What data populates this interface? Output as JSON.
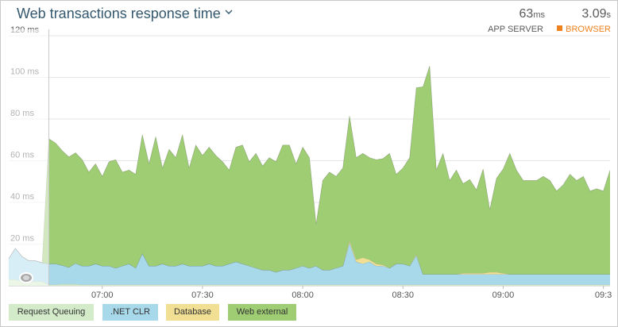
{
  "header": {
    "title": "Web transactions response time",
    "app_server": {
      "value": "63",
      "unit": "ms",
      "label": "APP SERVER"
    },
    "browser": {
      "value": "3.09",
      "unit": "s",
      "label": "BROWSER",
      "color": "#f0821e"
    }
  },
  "legend": [
    {
      "label": "Request Queuing",
      "color": "#d3ebc9"
    },
    {
      "label": ".NET CLR",
      "color": "#a8d9ea"
    },
    {
      "label": "Database",
      "color": "#f1df94"
    },
    {
      "label": "Web external",
      "color": "#9ecd73"
    }
  ],
  "chart_data": {
    "type": "area",
    "stacked": true,
    "ylim": [
      0,
      120
    ],
    "y_ticks": [
      20,
      40,
      60,
      80,
      100,
      120
    ],
    "y_tick_labels": [
      "20 ms",
      "40 ms",
      "60 ms",
      "80 ms",
      "100 ms",
      "120 ms"
    ],
    "x_tick_labels": [
      "07:00",
      "07:30",
      "08:00",
      "08:30",
      "09:00",
      "09:3"
    ],
    "x_ticks": [
      0,
      30,
      60,
      90,
      120,
      150
    ],
    "x_domain": [
      -28,
      152
    ],
    "grid": true,
    "highlight_until": -16,
    "x": [
      -28,
      -26,
      -24,
      -22,
      -20,
      -18,
      -16,
      -14,
      -12,
      -10,
      -8,
      -6,
      -4,
      -2,
      0,
      2,
      4,
      6,
      8,
      10,
      12,
      14,
      16,
      18,
      20,
      22,
      24,
      26,
      28,
      30,
      32,
      34,
      36,
      38,
      40,
      42,
      44,
      46,
      48,
      50,
      52,
      54,
      56,
      58,
      60,
      62,
      64,
      66,
      68,
      70,
      72,
      74,
      76,
      78,
      80,
      82,
      84,
      86,
      88,
      90,
      92,
      94,
      96,
      98,
      100,
      102,
      104,
      106,
      108,
      110,
      112,
      114,
      116,
      118,
      120,
      122,
      124,
      126,
      128,
      130,
      132,
      134,
      136,
      138,
      140,
      142,
      144,
      146,
      148,
      150,
      152
    ],
    "series": [
      {
        "name": "Request Queuing",
        "color": "#d3ebc9",
        "values": [
          3,
          3,
          2,
          2,
          2,
          2,
          0.5,
          0.5,
          0.8,
          0.8,
          0.8,
          0.5,
          0.5,
          0.5,
          0.5,
          0.5,
          0.5,
          0.5,
          0.5,
          0.5,
          0.5,
          0.5,
          0.5,
          0.5,
          0.5,
          0.5,
          0.5,
          0.5,
          0.5,
          0.5,
          0.5,
          0.5,
          0.5,
          0.5,
          0.5,
          0.5,
          0.5,
          0.5,
          0.5,
          0.5,
          0.5,
          0.5,
          0.5,
          0.5,
          0.5,
          0.5,
          0.5,
          0.5,
          0.5,
          0.5,
          0.5,
          0.5,
          0.5,
          0.5,
          0.5,
          0.5,
          0.5,
          0.5,
          0.5,
          0.5,
          0.5,
          0.5,
          0.5,
          0.5,
          0.5,
          0.5,
          0.5,
          0.5,
          0.5,
          0.5,
          0.5,
          0.5,
          0.5,
          0.5,
          0.5,
          0.5,
          0.5,
          0.5,
          0.5,
          0.5,
          0.5,
          0.5,
          0.5,
          0.5,
          0.5,
          0.5,
          0.5,
          0.5,
          0.5,
          0.5,
          0.5
        ]
      },
      {
        "name": ".NET CLR",
        "color": "#a8d9ea",
        "values": [
          10,
          15,
          12,
          10,
          10,
          9,
          10,
          10,
          9,
          8,
          10,
          9,
          9,
          10,
          9,
          9,
          8,
          9,
          10,
          8,
          15,
          9,
          9,
          10,
          9,
          9,
          10,
          9,
          9,
          9,
          10,
          9,
          9,
          10,
          11,
          10,
          9,
          8,
          7,
          7,
          6,
          7,
          7,
          8,
          9,
          8,
          9,
          7,
          7,
          8,
          9,
          20,
          11,
          10,
          11,
          9,
          9,
          8,
          10,
          10,
          9,
          14,
          5,
          5,
          5,
          5,
          5,
          5,
          5,
          5,
          5,
          5,
          5,
          5,
          5,
          5,
          5,
          5,
          5,
          5,
          5,
          5,
          5,
          5,
          5,
          5,
          5,
          5,
          5,
          5,
          5
        ]
      },
      {
        "name": "Database",
        "color": "#f1df94",
        "values": [
          0,
          0,
          0,
          0,
          0,
          0,
          0,
          0,
          0,
          0,
          0,
          0,
          0,
          0,
          0,
          0,
          0,
          0,
          0,
          0,
          0,
          0,
          0,
          0,
          0,
          0,
          0,
          0,
          0,
          0,
          0,
          0,
          0,
          0,
          0,
          0,
          0,
          0,
          0,
          0,
          0,
          0,
          0,
          0,
          0,
          0,
          0,
          0,
          0,
          0,
          0,
          1,
          1,
          3,
          1,
          1,
          0.5,
          0,
          0,
          0,
          0,
          0.5,
          0,
          0,
          0,
          0,
          0,
          0,
          0.5,
          0.5,
          0.5,
          0.5,
          1,
          1,
          0.5,
          0,
          0,
          0,
          0,
          0,
          0,
          0,
          0,
          0,
          0,
          0,
          0,
          0,
          0,
          0,
          0
        ]
      },
      {
        "name": "Web external",
        "color": "#9ecd73",
        "values": [
          0,
          0,
          0,
          0,
          0,
          0,
          60,
          58,
          55,
          53,
          53,
          51,
          45,
          48,
          43,
          50,
          52,
          45,
          45,
          45,
          57,
          49,
          62,
          46,
          56,
          52,
          62,
          47,
          58,
          53,
          56,
          53,
          50,
          45,
          55,
          57,
          50,
          55,
          50,
          54,
          53,
          60,
          60,
          50,
          57,
          53,
          20,
          43,
          47,
          44,
          47,
          60,
          49,
          50,
          49,
          50,
          51,
          55,
          43,
          46,
          52,
          80,
          90,
          100,
          50,
          58,
          45,
          50,
          43,
          45,
          40,
          50,
          30,
          45,
          50,
          58,
          50,
          45,
          45,
          45,
          47,
          45,
          40,
          43,
          48,
          45,
          47,
          40,
          41,
          40,
          50
        ]
      }
    ]
  }
}
